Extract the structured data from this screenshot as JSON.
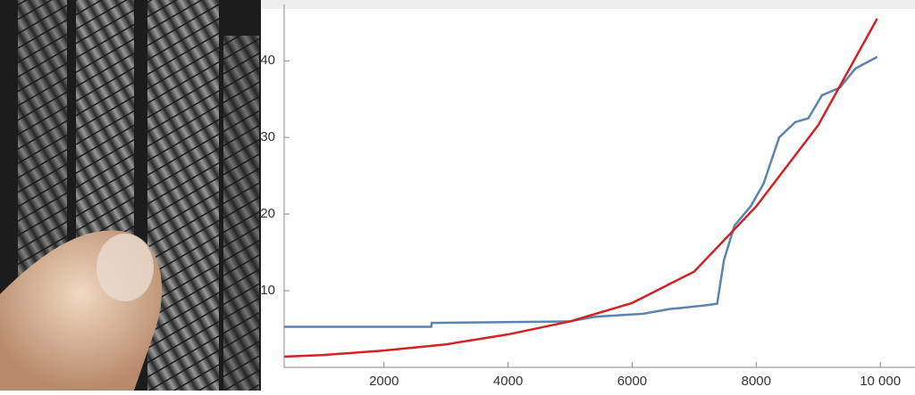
{
  "chart_data": {
    "type": "line",
    "xlim": [
      390,
      10430
    ],
    "ylim": [
      0,
      47
    ],
    "xticks": [
      2000,
      4000,
      6000,
      8000,
      {
        "value": 10000,
        "label": "10 000"
      }
    ],
    "yticks": [
      10,
      20,
      30,
      40
    ],
    "series": [
      {
        "color": "#5b84b1",
        "x": [
          390,
          2760,
          2770,
          5000,
          5400,
          6180,
          6600,
          7190,
          7370,
          7480,
          7650,
          7910,
          8120,
          8370,
          8630,
          8840,
          9060,
          9350,
          9600,
          9950
        ],
        "values": [
          5.3,
          5.3,
          5.8,
          6.0,
          6.6,
          7.0,
          7.6,
          8.1,
          8.3,
          14,
          18.5,
          21,
          24,
          30,
          32,
          32.5,
          35.5,
          36.5,
          39,
          40.5
        ]
      },
      {
        "color": "#d42222",
        "x": [
          390,
          1000,
          2000,
          3000,
          4000,
          5000,
          6000,
          7000,
          8000,
          9000,
          9950
        ],
        "values": [
          1.4,
          1.6,
          2.2,
          3.0,
          4.3,
          6.0,
          8.4,
          12.5,
          21,
          31.6,
          45.5
        ]
      }
    ]
  }
}
